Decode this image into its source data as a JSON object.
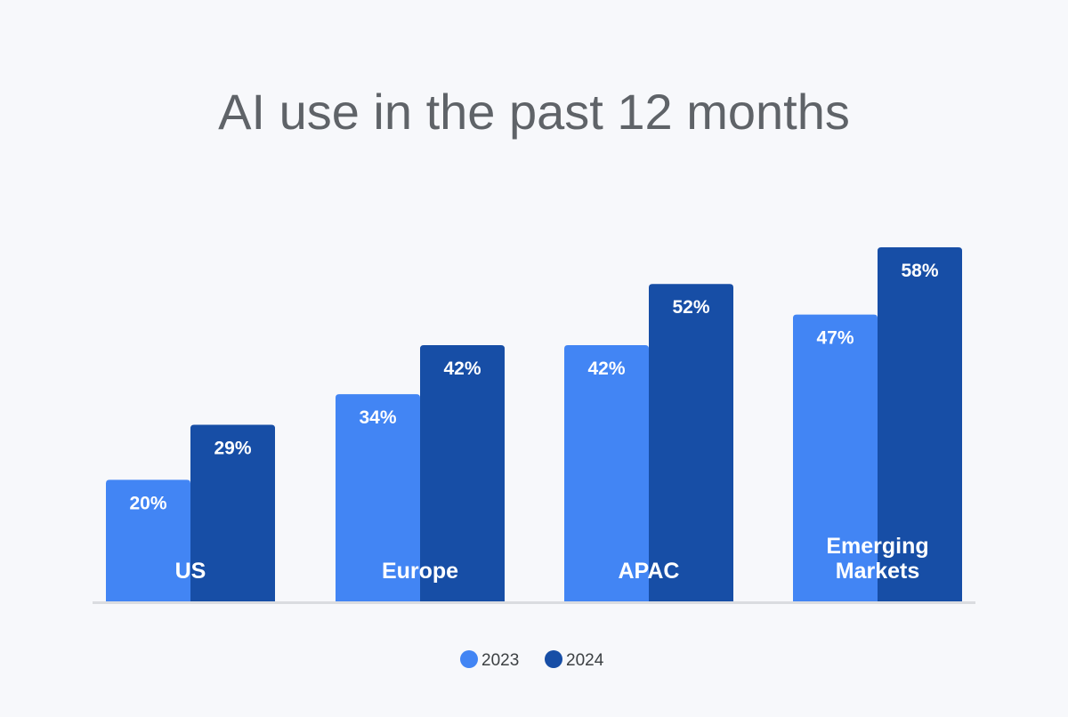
{
  "chart_data": {
    "type": "bar",
    "title": "AI use in the past 12 months",
    "xlabel": "",
    "ylabel": "",
    "categories": [
      [
        "US"
      ],
      [
        "Europe"
      ],
      [
        "APAC"
      ],
      [
        "Emerging",
        "Markets"
      ]
    ],
    "series": [
      {
        "name": "2023",
        "color": "#4285f4",
        "values": [
          20,
          34,
          42,
          47
        ],
        "labels": [
          "20%",
          "34%",
          "42%",
          "47%"
        ]
      },
      {
        "name": "2024",
        "color": "#174ea6",
        "values": [
          29,
          42,
          52,
          58
        ],
        "labels": [
          "29%",
          "42%",
          "52%",
          "58%"
        ]
      }
    ],
    "ylim": [
      0,
      58
    ],
    "grid": false,
    "legend_position": "bottom-center",
    "baseline_color": "#dadce0"
  }
}
